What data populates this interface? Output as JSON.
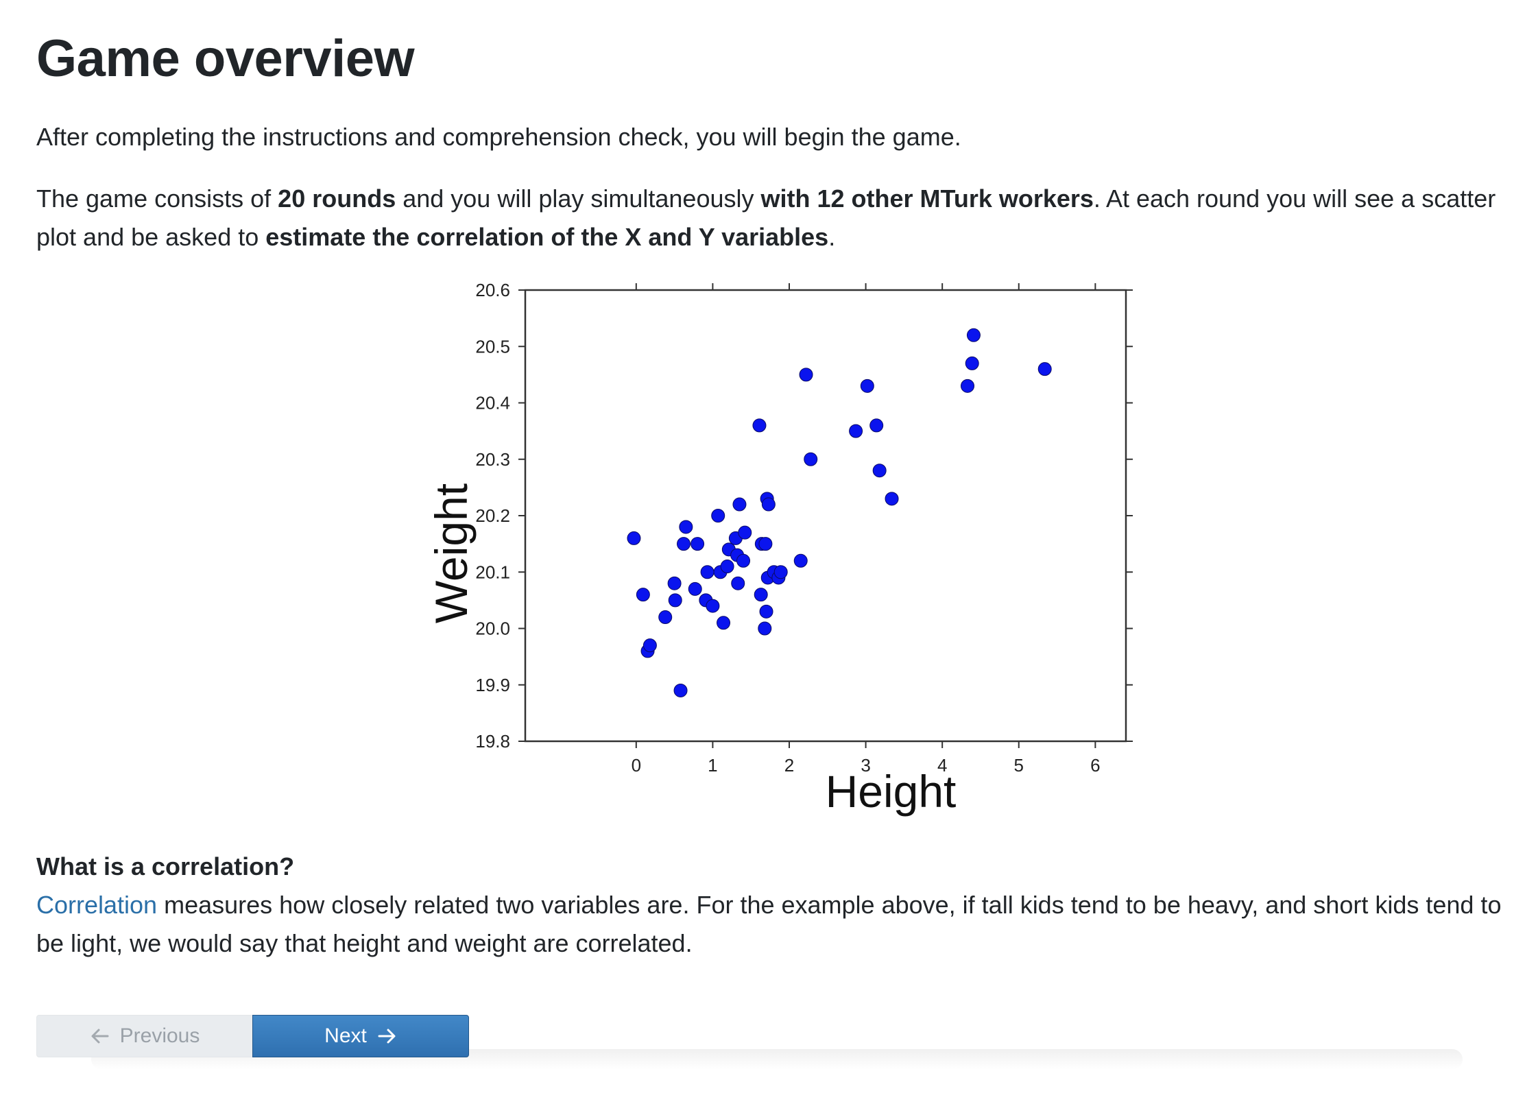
{
  "page": {
    "title": "Game overview",
    "intro": "After completing the instructions and comprehension check, you will begin the game.",
    "desc": {
      "p1": "The game consists of ",
      "b1": "20 rounds",
      "p2": " and you will play simultaneously ",
      "b2": "with 12 other MTurk workers",
      "p3": ". At each round you will see a scatter plot and be asked to ",
      "b3": "estimate the correlation of the X and Y variables",
      "p4": "."
    },
    "section_title": "What is a correlation?",
    "definition": {
      "link_text": "Correlation",
      "rest": " measures how closely related two variables are. For the example above, if tall kids tend to be heavy, and short kids tend to be light, we would say that height and weight are correlated."
    }
  },
  "nav": {
    "prev_label": "Previous",
    "next_label": "Next"
  },
  "chart_data": {
    "type": "scatter",
    "xlabel": "Height",
    "ylabel": "Weight",
    "xlim": [
      -1.45,
      6.4
    ],
    "ylim": [
      19.8,
      20.6
    ],
    "xticks": [
      0,
      1,
      2,
      3,
      4,
      5,
      6
    ],
    "yticks": [
      19.8,
      19.9,
      20.0,
      20.1,
      20.2,
      20.3,
      20.4,
      20.5,
      20.6
    ],
    "ytick_labels": [
      "19.8",
      "19.9",
      "20.0",
      "20.1",
      "20.2",
      "20.3",
      "20.4",
      "20.5",
      "20.6"
    ],
    "grid": false,
    "marker_color": "#0a14ee",
    "points": [
      {
        "x": -0.03,
        "y": 20.16
      },
      {
        "x": 0.09,
        "y": 20.06
      },
      {
        "x": 0.15,
        "y": 19.96
      },
      {
        "x": 0.18,
        "y": 19.97
      },
      {
        "x": 0.38,
        "y": 20.02
      },
      {
        "x": 0.5,
        "y": 20.08
      },
      {
        "x": 0.51,
        "y": 20.05
      },
      {
        "x": 0.58,
        "y": 19.89
      },
      {
        "x": 0.62,
        "y": 20.15
      },
      {
        "x": 0.65,
        "y": 20.18
      },
      {
        "x": 0.77,
        "y": 20.07
      },
      {
        "x": 0.8,
        "y": 20.15
      },
      {
        "x": 0.91,
        "y": 20.05
      },
      {
        "x": 0.93,
        "y": 20.1
      },
      {
        "x": 1.0,
        "y": 20.04
      },
      {
        "x": 1.07,
        "y": 20.2
      },
      {
        "x": 1.1,
        "y": 20.1
      },
      {
        "x": 1.14,
        "y": 20.01
      },
      {
        "x": 1.19,
        "y": 20.11
      },
      {
        "x": 1.21,
        "y": 20.14
      },
      {
        "x": 1.3,
        "y": 20.16
      },
      {
        "x": 1.32,
        "y": 20.13
      },
      {
        "x": 1.33,
        "y": 20.08
      },
      {
        "x": 1.35,
        "y": 20.22
      },
      {
        "x": 1.4,
        "y": 20.12
      },
      {
        "x": 1.42,
        "y": 20.17
      },
      {
        "x": 1.61,
        "y": 20.36
      },
      {
        "x": 1.63,
        "y": 20.06
      },
      {
        "x": 1.64,
        "y": 20.15
      },
      {
        "x": 1.68,
        "y": 20.0
      },
      {
        "x": 1.69,
        "y": 20.15
      },
      {
        "x": 1.7,
        "y": 20.03
      },
      {
        "x": 1.71,
        "y": 20.23
      },
      {
        "x": 1.72,
        "y": 20.09
      },
      {
        "x": 1.73,
        "y": 20.22
      },
      {
        "x": 1.8,
        "y": 20.1
      },
      {
        "x": 1.86,
        "y": 20.09
      },
      {
        "x": 1.89,
        "y": 20.1
      },
      {
        "x": 2.15,
        "y": 20.12
      },
      {
        "x": 2.22,
        "y": 20.45
      },
      {
        "x": 2.28,
        "y": 20.3
      },
      {
        "x": 2.87,
        "y": 20.35
      },
      {
        "x": 3.02,
        "y": 20.43
      },
      {
        "x": 3.14,
        "y": 20.36
      },
      {
        "x": 3.18,
        "y": 20.28
      },
      {
        "x": 3.34,
        "y": 20.23
      },
      {
        "x": 4.33,
        "y": 20.43
      },
      {
        "x": 4.39,
        "y": 20.47
      },
      {
        "x": 4.41,
        "y": 20.52
      },
      {
        "x": 5.34,
        "y": 20.46
      }
    ]
  }
}
